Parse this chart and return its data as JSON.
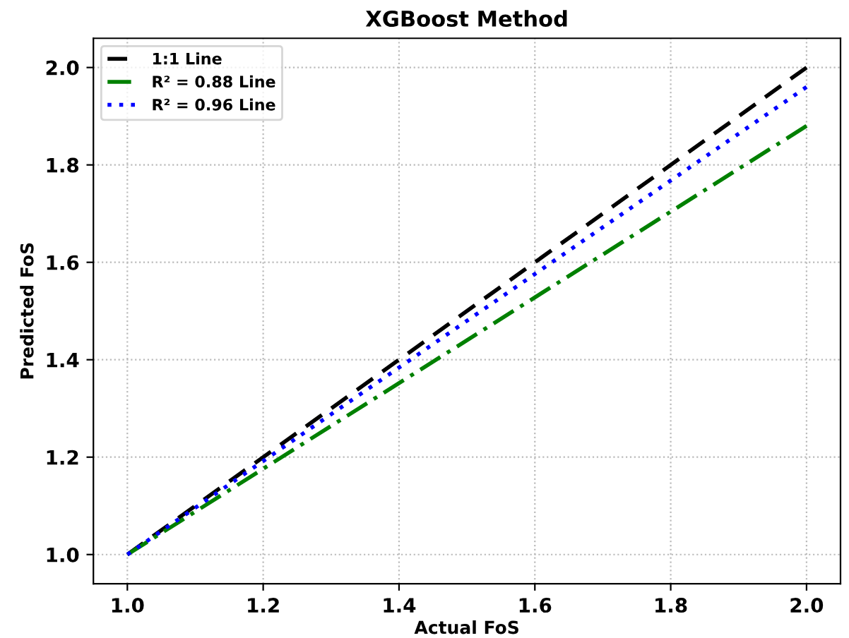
{
  "chart_data": {
    "type": "line",
    "title": "XGBoost Method",
    "xlabel": "Actual FoS",
    "ylabel": "Predicted FoS",
    "x": [
      1.0,
      2.0
    ],
    "series": [
      {
        "name": "1:1 Line",
        "color": "#000000",
        "values": [
          1.0,
          2.0
        ],
        "line_style": "dashed"
      },
      {
        "name": "R² = 0.88 Line",
        "color": "#008000",
        "values": [
          1.0,
          1.88
        ],
        "line_style": "dashdot"
      },
      {
        "name": "R² = 0.96 Line",
        "color": "#0000ff",
        "values": [
          1.0,
          1.96
        ],
        "line_style": "dotted"
      }
    ],
    "xlim": [
      0.95,
      2.05
    ],
    "ylim": [
      0.94,
      2.06
    ],
    "xticks": [
      {
        "value": 1.0,
        "label": "1.0"
      },
      1.2,
      1.4,
      1.6,
      1.8,
      {
        "value": 2.0,
        "label": "2.0"
      }
    ],
    "yticks": [
      {
        "value": 1.0,
        "label": "1.0"
      },
      1.2,
      1.4,
      1.6,
      1.8,
      {
        "value": 2.0,
        "label": "2.0"
      }
    ],
    "grid": true,
    "legend": "top left",
    "marker": "none"
  }
}
